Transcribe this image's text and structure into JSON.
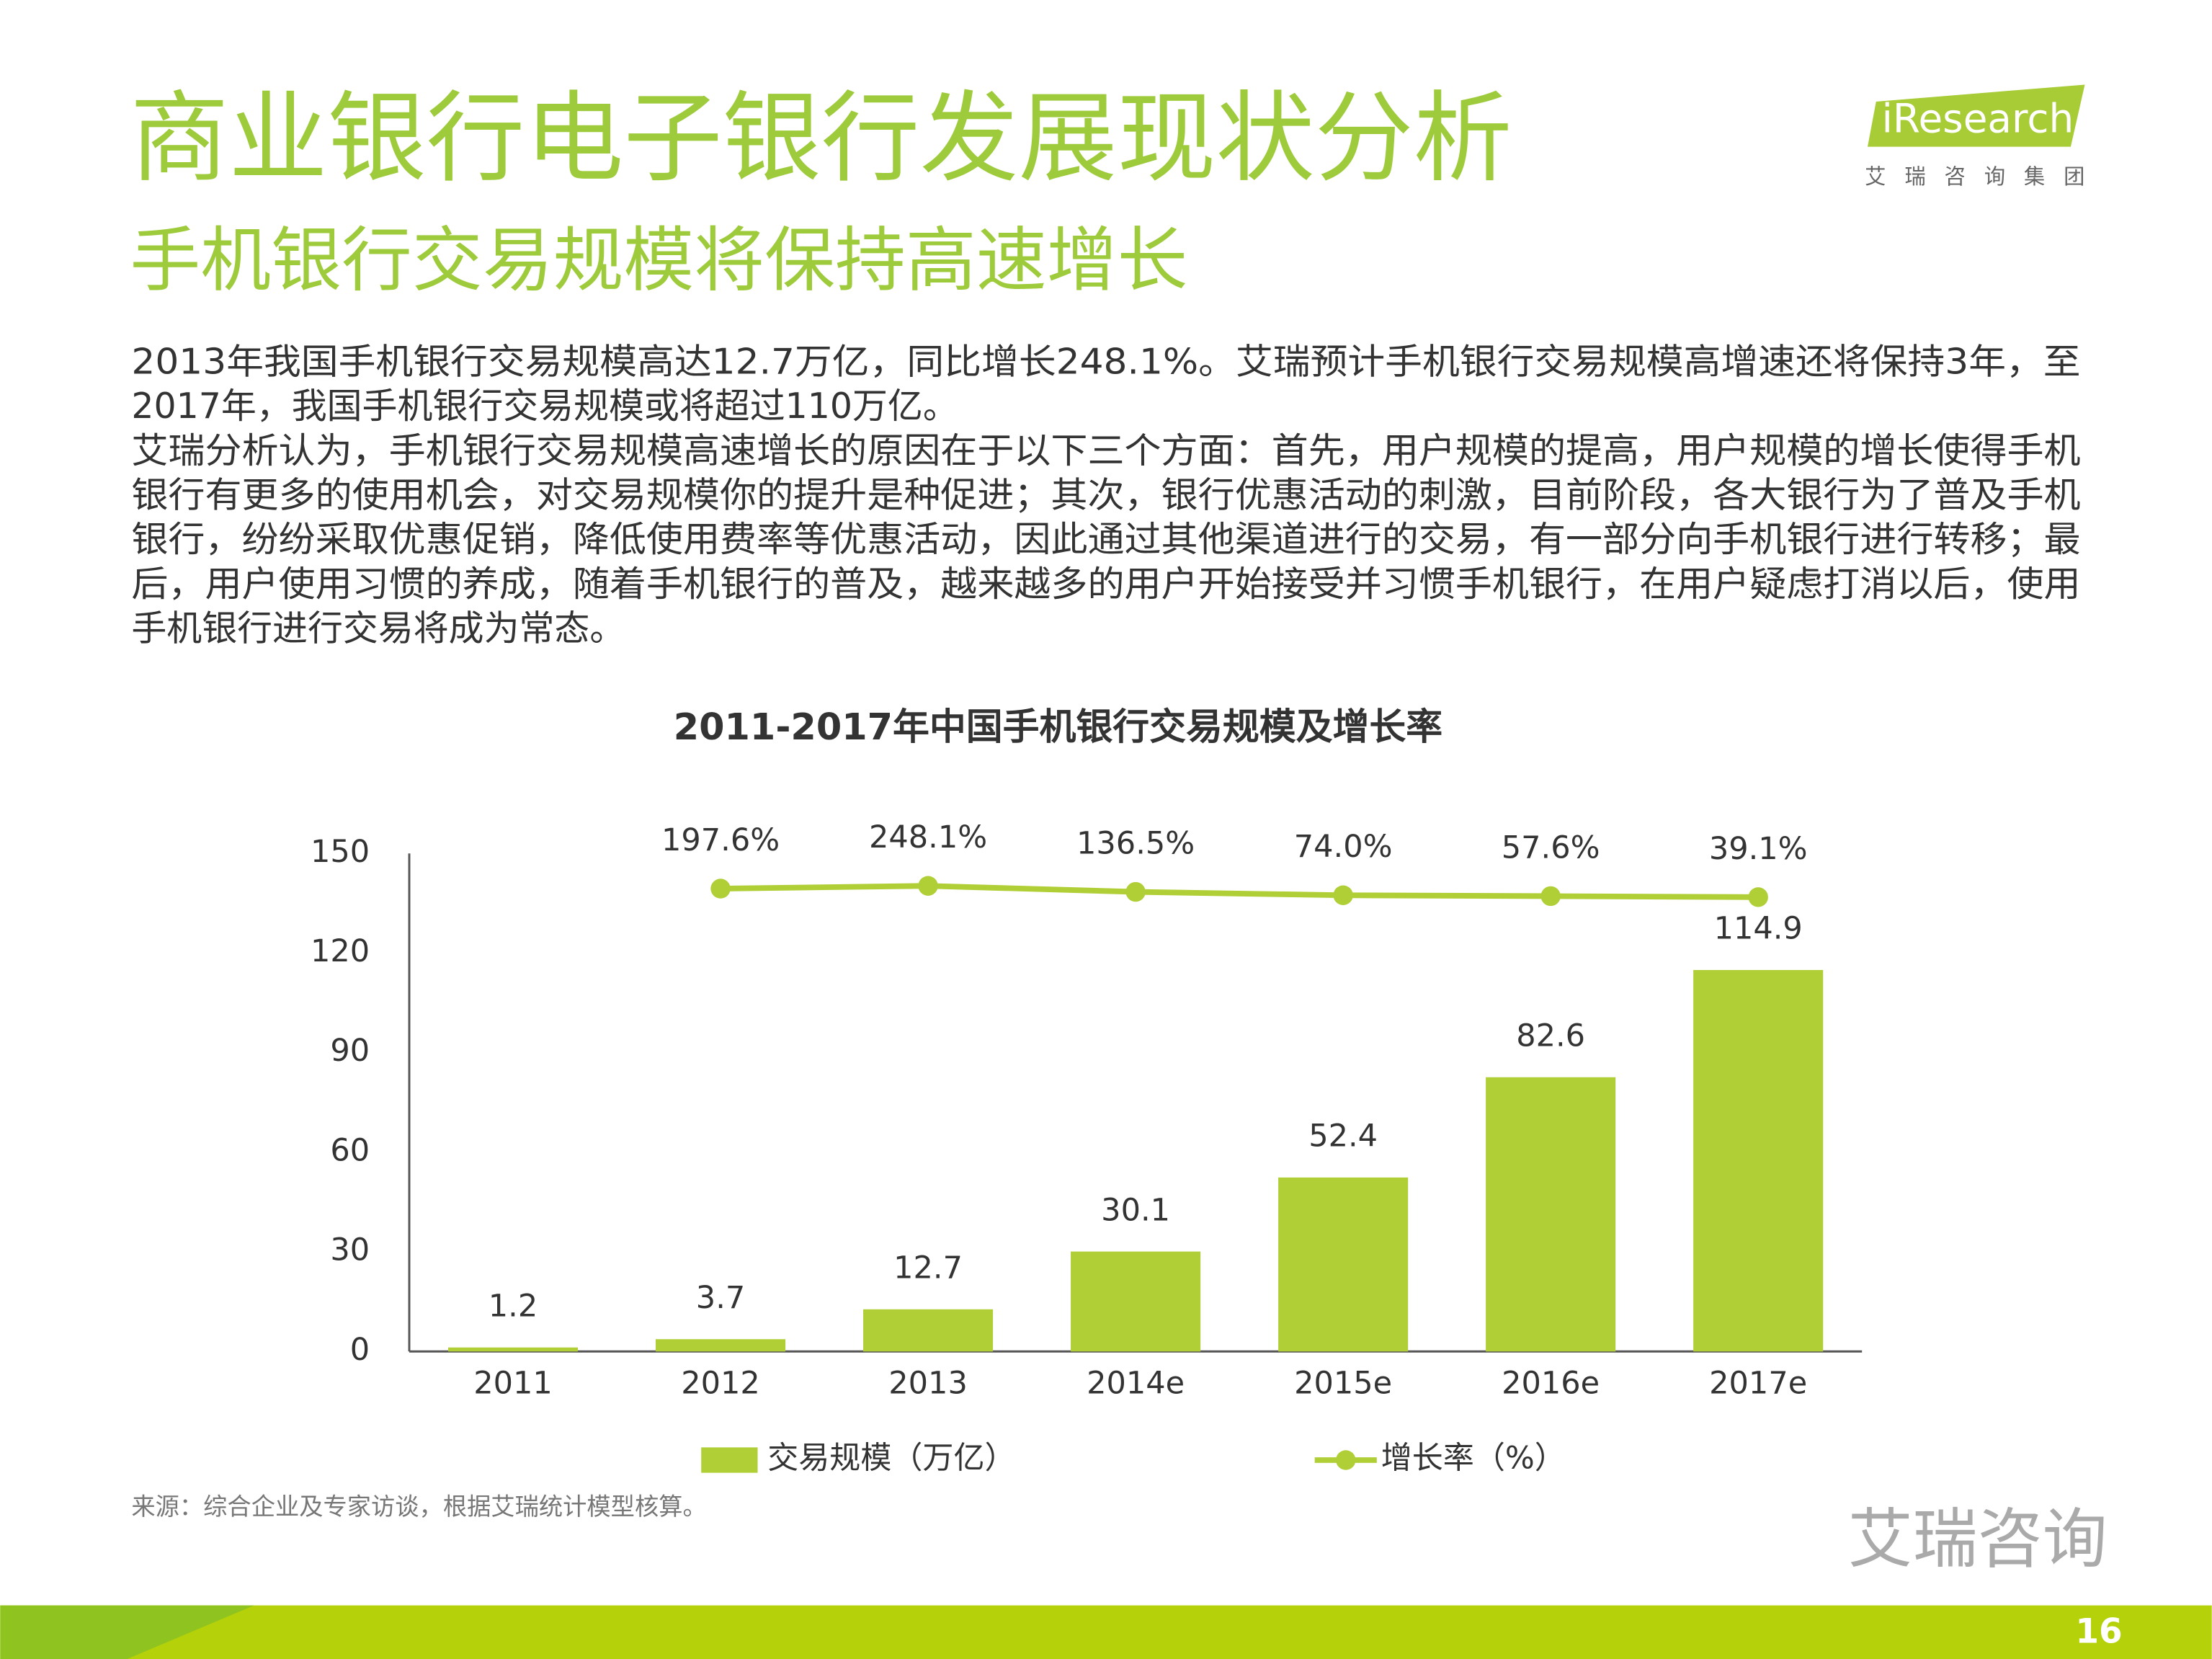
{
  "header": {
    "title": "商业银行电子银行发展现状分析",
    "subtitle": "手机银行交易规模将保持高速增长",
    "logo": "iResearch",
    "logo_sub": "艾瑞咨询集团"
  },
  "body": {
    "lines": [
      "2013年我国手机银行交易规模高达12.7万亿，同比增长248.1%。艾瑞预计手机银行交易规模高增速还将保持3年，至",
      "2017年，我国手机银行交易规模或将超过110万亿。",
      "艾瑞分析认为，手机银行交易规模高速增长的原因在于以下三个方面：首先，用户规模的提高，用户规模的增长使得手机",
      "银行有更多的使用机会，对交易规模你的提升是种促进；其次，银行优惠活动的刺激，目前阶段，各大银行为了普及手机",
      "银行，纷纷采取优惠促销，降低使用费率等优惠活动，因此通过其他渠道进行的交易，有一部分向手机银行进行转移；最",
      "后，用户使用习惯的养成，随着手机银行的普及，越来越多的用户开始接受并习惯手机银行，在用户疑虑打消以后，使用",
      "手机银行进行交易将成为常态。"
    ]
  },
  "chart_data": {
    "type": "bar",
    "title": "2011-2017年中国手机银行交易规模及增长率",
    "categories": [
      "2011",
      "2012",
      "2013",
      "2014e",
      "2015e",
      "2016e",
      "2017e"
    ],
    "series": [
      {
        "name": "交易规模（万亿）",
        "type": "bar",
        "color": "#b0cf36",
        "values": [
          1.2,
          3.7,
          12.7,
          30.1,
          52.4,
          82.6,
          114.9
        ]
      },
      {
        "name": "增长率（%）",
        "type": "line",
        "axis": "y2",
        "color": "#b0cf36",
        "values": [
          null,
          197.6,
          248.1,
          136.5,
          74.0,
          57.6,
          39.1
        ],
        "value_labels": [
          null,
          "197.6%",
          "248.1%",
          "136.5%",
          "74.0%",
          "57.6%",
          "39.1%"
        ]
      }
    ],
    "ylim": [
      0,
      150
    ],
    "yticks": [
      0,
      30,
      60,
      90,
      120,
      150
    ],
    "y2lim": [
      -8400,
      850
    ],
    "legend": "bottom"
  },
  "footer": {
    "source": "来源：综合企业及专家访谈，根据艾瑞统计模型核算。",
    "page": "16",
    "watermark": "艾瑞咨询"
  }
}
